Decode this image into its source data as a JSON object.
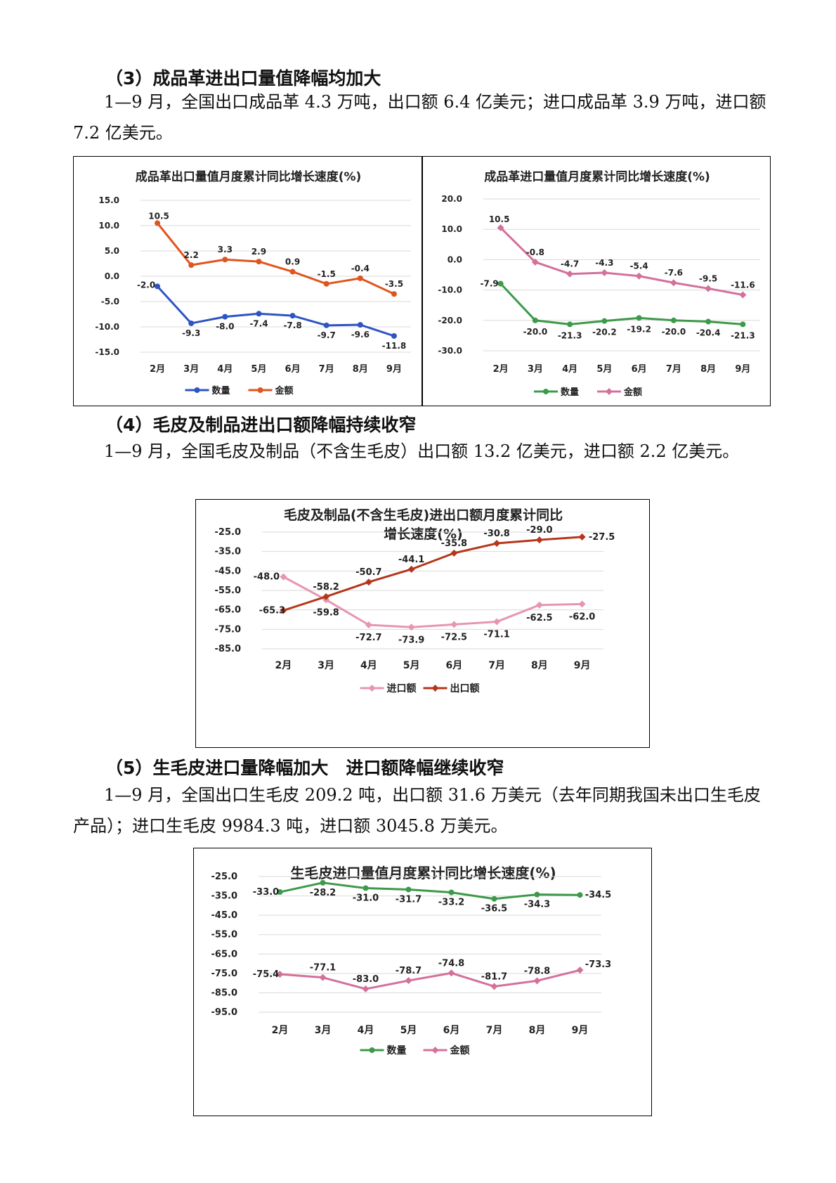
{
  "sections": {
    "s3": {
      "heading": "（3）成品革进出口量值降幅均加大",
      "para": "1—9 月，全国出口成品革 4.3 万吨，出口额 6.4 亿美元；进口成品革 3.9 万吨，进口额 7.2 亿美元。"
    },
    "s4": {
      "heading": "（4）毛皮及制品进出口额降幅持续收窄",
      "para": "1—9 月，全国毛皮及制品（不含生毛皮）出口额 13.2 亿美元，进口额 2.2 亿美元。"
    },
    "s5": {
      "heading": "（5）生毛皮进口量降幅加大　进口额降幅继续收窄",
      "para": "1—9 月，全国出口生毛皮 209.2 吨，出口额 31.6 万美元（去年同期我国未出口生毛皮产品）；进口生毛皮 9984.3 吨，进口额 3045.8 万美元。"
    }
  },
  "chart_data": [
    {
      "type": "line",
      "title": "成品革出口量值月度累计同比增长速度(%)",
      "categories": [
        "2月",
        "3月",
        "4月",
        "5月",
        "6月",
        "7月",
        "8月",
        "9月"
      ],
      "ylim": [
        -15,
        15
      ],
      "yticks": [
        "15.0",
        "10.0",
        "5.0",
        "0.0",
        "-5.0",
        "-10.0",
        "-15.0"
      ],
      "grid": true,
      "legend": "bottom",
      "series": [
        {
          "name": "数量",
          "color": "#2E54C4",
          "marker": "circle",
          "values": [
            -2.0,
            -9.3,
            -8.0,
            -7.4,
            -7.8,
            -9.7,
            -9.6,
            -11.8
          ]
        },
        {
          "name": "金额",
          "color": "#E0541E",
          "marker": "circle",
          "values": [
            10.5,
            2.2,
            3.3,
            2.9,
            0.9,
            -1.5,
            -0.4,
            -3.5
          ]
        }
      ]
    },
    {
      "type": "line",
      "title": "成品革进口量值月度累计同比增长速度(%)",
      "categories": [
        "2月",
        "3月",
        "4月",
        "5月",
        "6月",
        "7月",
        "8月",
        "9月"
      ],
      "ylim": [
        -30,
        20
      ],
      "yticks": [
        "20.0",
        "10.0",
        "0.0",
        "-10.0",
        "-20.0",
        "-30.0"
      ],
      "grid": true,
      "legend": "bottom",
      "series": [
        {
          "name": "数量",
          "color": "#3C9A48",
          "marker": "circle",
          "values": [
            -7.9,
            -20.0,
            -21.3,
            -20.2,
            -19.2,
            -20.0,
            -20.4,
            -21.3
          ]
        },
        {
          "name": "金额",
          "color": "#D4709A",
          "marker": "diamond",
          "values": [
            10.5,
            -0.8,
            -4.7,
            -4.3,
            -5.4,
            -7.6,
            -9.5,
            -11.6
          ]
        }
      ]
    },
    {
      "type": "line",
      "title": "毛皮及制品(不含生毛皮)进出口额月度累计同比增长速度(%)",
      "title_lines": [
        "毛皮及制品(不含生毛皮)进出口额月度累计同比",
        "增长速度(%)"
      ],
      "categories": [
        "2月",
        "3月",
        "4月",
        "5月",
        "6月",
        "7月",
        "8月",
        "9月"
      ],
      "ylim": [
        -85,
        -25
      ],
      "yticks": [
        "-25.0",
        "-35.0",
        "-45.0",
        "-55.0",
        "-65.0",
        "-75.0",
        "-85.0"
      ],
      "grid": true,
      "legend": "bottom",
      "series": [
        {
          "name": "进口额",
          "color": "#E896B0",
          "marker": "diamond",
          "values": [
            -48.0,
            -59.8,
            -72.7,
            -73.9,
            -72.5,
            -71.1,
            -62.5,
            -62.0
          ]
        },
        {
          "name": "出口额",
          "color": "#B5361A",
          "marker": "diamond",
          "values": [
            -65.3,
            -58.2,
            -50.7,
            -44.1,
            -35.8,
            -30.8,
            -29.0,
            -27.5
          ]
        }
      ]
    },
    {
      "type": "line",
      "title": "生毛皮进口量值月度累计同比增长速度(%)",
      "categories": [
        "2月",
        "3月",
        "4月",
        "5月",
        "6月",
        "7月",
        "8月",
        "9月"
      ],
      "ylim": [
        -95,
        -25
      ],
      "yticks": [
        "-25.0",
        "-35.0",
        "-45.0",
        "-55.0",
        "-65.0",
        "-75.0",
        "-85.0",
        "-95.0"
      ],
      "grid": true,
      "legend": "bottom",
      "series": [
        {
          "name": "数量",
          "color": "#3C9A48",
          "marker": "circle",
          "values": [
            -33.0,
            -28.2,
            -31.0,
            -31.7,
            -33.2,
            -36.5,
            -34.3,
            -34.5
          ]
        },
        {
          "name": "金额",
          "color": "#D4709A",
          "marker": "diamond",
          "values": [
            -75.4,
            -77.1,
            -83.0,
            -78.7,
            -74.8,
            -81.7,
            -78.8,
            -73.3
          ]
        }
      ]
    }
  ]
}
